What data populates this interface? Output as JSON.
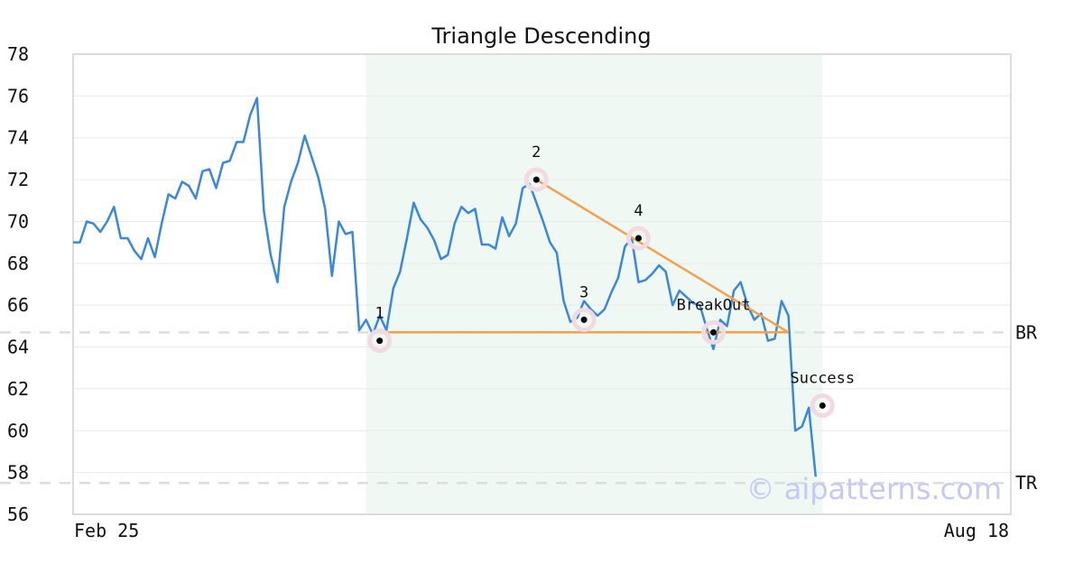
{
  "chart_data": {
    "type": "line",
    "title": "Triangle Descending",
    "ylim": [
      56,
      78
    ],
    "y_ticks": [
      56,
      58,
      60,
      62,
      64,
      66,
      68,
      70,
      72,
      74,
      76,
      78
    ],
    "x_labels": {
      "start": "Feb 25",
      "end": "Aug 18"
    },
    "x_range": [
      0,
      124
    ],
    "grid": "horizontal",
    "series": [
      {
        "color": "#3a87e0",
        "values": [
          69.0,
          69.0,
          70.0,
          69.9,
          69.5,
          70.0,
          70.7,
          69.2,
          69.2,
          68.6,
          68.2,
          69.2,
          68.3,
          69.9,
          71.3,
          71.1,
          71.9,
          71.7,
          71.1,
          72.4,
          72.5,
          71.6,
          72.8,
          72.9,
          73.8,
          73.8,
          75.1,
          75.9,
          70.5,
          68.4,
          67.1,
          70.7,
          71.9,
          72.8,
          74.1,
          73.1,
          72.1,
          70.6,
          67.4,
          70.0,
          69.4,
          69.5,
          64.8,
          65.3,
          64.6,
          65.5,
          64.8,
          66.8,
          67.6,
          69.2,
          70.9,
          70.1,
          69.7,
          69.1,
          68.2,
          68.4,
          69.9,
          70.7,
          70.4,
          70.6,
          68.9,
          68.9,
          68.7,
          70.2,
          69.3,
          69.9,
          71.6,
          71.8,
          70.9,
          70.0,
          69.0,
          68.5,
          66.2,
          65.2,
          65.4,
          66.2,
          65.8,
          65.5,
          65.8,
          66.6,
          67.3,
          68.8,
          69.2,
          67.1,
          67.2,
          67.5,
          67.9,
          67.6,
          66.0,
          66.7,
          66.4,
          66.1,
          66.0,
          64.9,
          63.9,
          65.3,
          65.0,
          66.7,
          67.1,
          66.0,
          65.3,
          65.6,
          64.3,
          64.4,
          66.2,
          65.5,
          60.0,
          60.2,
          61.1,
          57.8
        ]
      }
    ],
    "highlight_range": {
      "from_index": 43,
      "to_index": 110,
      "color": "#f0f8f4"
    },
    "reference_lines": [
      {
        "label": "BR",
        "y": 64.7
      },
      {
        "label": "TR",
        "y": 57.5
      }
    ],
    "pattern_lines": [
      {
        "color": "#f5a04a",
        "points": [
          [
            45,
            64.7
          ],
          [
            105,
            64.7
          ]
        ]
      },
      {
        "color": "#f5a04a",
        "points": [
          [
            68,
            72.0
          ],
          [
            105,
            64.7
          ]
        ]
      }
    ],
    "annotations": [
      {
        "label": "1",
        "x": 45,
        "y": 64.3
      },
      {
        "label": "2",
        "x": 68,
        "y": 72.0
      },
      {
        "label": "3",
        "x": 75,
        "y": 65.3
      },
      {
        "label": "4",
        "x": 83,
        "y": 69.2
      },
      {
        "label": "BreakOut",
        "x": 94,
        "y": 64.7
      },
      {
        "label": "Success",
        "x": 110,
        "y": 61.2
      }
    ],
    "watermark": "© aipatterns.com"
  }
}
